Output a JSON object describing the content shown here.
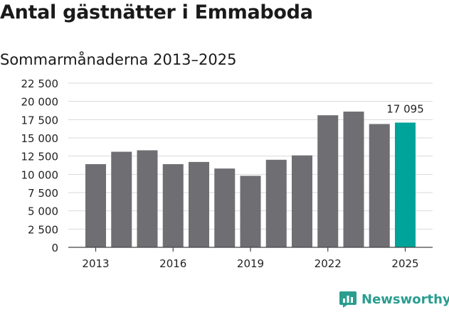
{
  "header": {
    "title": "Antal gästnätter i Emmaboda",
    "subtitle": "Sommarmånaderna 2013–2025"
  },
  "brand": {
    "name": "Newsworthy",
    "icon": "newsworthy-logo-icon",
    "color": "#2a9d8f"
  },
  "chart_data": {
    "type": "bar",
    "title": "Antal gästnätter i Emmaboda",
    "subtitle": "Sommarmånaderna 2013–2025",
    "xlabel": "",
    "ylabel": "",
    "categories": [
      "2013",
      "2014",
      "2015",
      "2016",
      "2017",
      "2018",
      "2019",
      "2020",
      "2021",
      "2022",
      "2023",
      "2024",
      "2025"
    ],
    "x_tick_labels": [
      "2013",
      "2016",
      "2019",
      "2022",
      "2025"
    ],
    "values": [
      11400,
      13100,
      13300,
      11400,
      11700,
      10800,
      9800,
      12000,
      12600,
      18100,
      18600,
      16900,
      17095
    ],
    "ylim": [
      0,
      22500
    ],
    "y_ticks": [
      0,
      2500,
      5000,
      7500,
      10000,
      12500,
      15000,
      17500,
      20000,
      22500
    ],
    "y_tick_labels": [
      "0",
      "2 500",
      "5 000",
      "7 500",
      "10 000",
      "12 500",
      "15 000",
      "17 500",
      "20 000",
      "22 500"
    ],
    "highlight_index": 12,
    "highlight_label": "17 095",
    "bar_color": "#6f6e73",
    "highlight_color": "#00a39a",
    "grid": true,
    "legend": "none"
  }
}
